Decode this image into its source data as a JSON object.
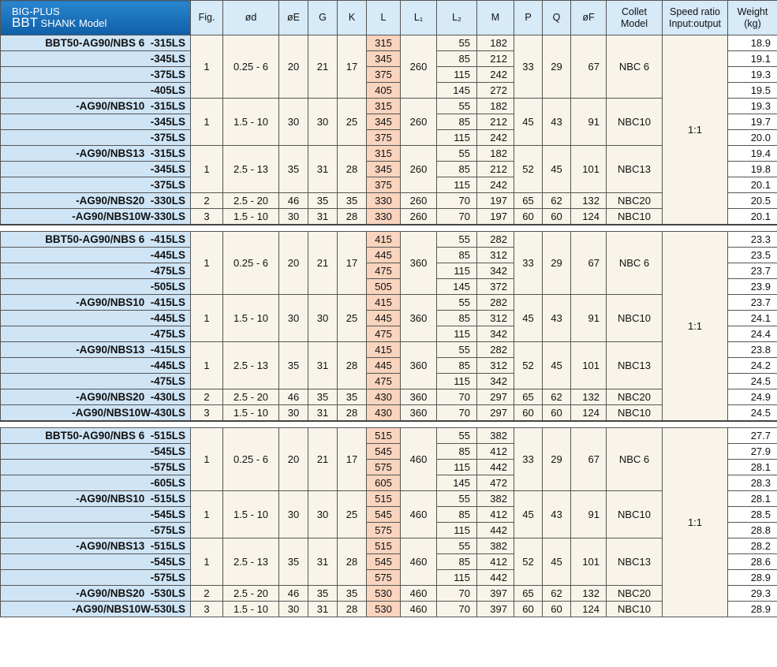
{
  "header": {
    "title": [
      "BIG-PLUS",
      "BBT",
      "SHANK Model"
    ],
    "columns": [
      [
        "Fig."
      ],
      [
        "ød"
      ],
      [
        "øE"
      ],
      [
        "G"
      ],
      [
        "K"
      ],
      [
        "L"
      ],
      [
        "L₁"
      ],
      [
        "L₂"
      ],
      [
        "M"
      ],
      [
        "P"
      ],
      [
        "Q"
      ],
      [
        "øF"
      ],
      [
        "Collet",
        "Model"
      ],
      [
        "Speed ratio",
        "Input:output"
      ],
      [
        "Weight",
        "(kg)"
      ]
    ]
  },
  "sections": [
    {
      "speed_ratio": "1:1",
      "groups": [
        {
          "fig": 1,
          "od": "0.25 - 6",
          "oE": 20,
          "G": 21,
          "K": 17,
          "L1": 260,
          "P": 33,
          "Q": 29,
          "oF": 67,
          "collet": "NBC 6",
          "rows": [
            {
              "model": "BBT50-AG90/NBS 6  -315LS",
              "L": 315,
              "L2": 55,
              "M": 182,
              "weight": "18.9"
            },
            {
              "model": "-345LS",
              "L": 345,
              "L2": 85,
              "M": 212,
              "weight": "19.1"
            },
            {
              "model": "-375LS",
              "L": 375,
              "L2": 115,
              "M": 242,
              "weight": "19.3"
            },
            {
              "model": "-405LS",
              "L": 405,
              "L2": 145,
              "M": 272,
              "weight": "19.5"
            }
          ]
        },
        {
          "fig": 1,
          "od": "1.5 - 10",
          "oE": 30,
          "G": 30,
          "K": 25,
          "L1": 260,
          "P": 45,
          "Q": 43,
          "oF": 91,
          "collet": "NBC10",
          "rows": [
            {
              "model": "-AG90/NBS10  -315LS",
              "L": 315,
              "L2": 55,
              "M": 182,
              "weight": "19.3"
            },
            {
              "model": "-345LS",
              "L": 345,
              "L2": 85,
              "M": 212,
              "weight": "19.7"
            },
            {
              "model": "-375LS",
              "L": 375,
              "L2": 115,
              "M": 242,
              "weight": "20.0"
            }
          ]
        },
        {
          "fig": 1,
          "od": "2.5 - 13",
          "oE": 35,
          "G": 31,
          "K": 28,
          "L1": 260,
          "P": 52,
          "Q": 45,
          "oF": 101,
          "collet": "NBC13",
          "rows": [
            {
              "model": "-AG90/NBS13  -315LS",
              "L": 315,
              "L2": 55,
              "M": 182,
              "weight": "19.4"
            },
            {
              "model": "-345LS",
              "L": 345,
              "L2": 85,
              "M": 212,
              "weight": "19.8"
            },
            {
              "model": "-375LS",
              "L": 375,
              "L2": 115,
              "M": 242,
              "weight": "20.1"
            }
          ]
        },
        {
          "fig": 2,
          "od": "2.5 - 20",
          "oE": 46,
          "G": 35,
          "K": 35,
          "L1": 260,
          "P": 65,
          "Q": 62,
          "oF": 132,
          "collet": "NBC20",
          "rows": [
            {
              "model": "-AG90/NBS20  -330LS",
              "L": 330,
              "L2": 70,
              "M": 197,
              "weight": "20.5"
            }
          ]
        },
        {
          "fig": 3,
          "od": "1.5 - 10",
          "oE": 30,
          "G": 31,
          "K": 28,
          "L1": 260,
          "P": 60,
          "Q": 60,
          "oF": 124,
          "collet": "NBC10",
          "rows": [
            {
              "model": "-AG90/NBS10W-330LS",
              "L": 330,
              "L2": 70,
              "M": 197,
              "weight": "20.1"
            }
          ]
        }
      ]
    },
    {
      "speed_ratio": "1:1",
      "groups": [
        {
          "fig": 1,
          "od": "0.25 - 6",
          "oE": 20,
          "G": 21,
          "K": 17,
          "L1": 360,
          "P": 33,
          "Q": 29,
          "oF": 67,
          "collet": "NBC 6",
          "rows": [
            {
              "model": "BBT50-AG90/NBS 6  -415LS",
              "L": 415,
              "L2": 55,
              "M": 282,
              "weight": "23.3"
            },
            {
              "model": "-445LS",
              "L": 445,
              "L2": 85,
              "M": 312,
              "weight": "23.5"
            },
            {
              "model": "-475LS",
              "L": 475,
              "L2": 115,
              "M": 342,
              "weight": "23.7"
            },
            {
              "model": "-505LS",
              "L": 505,
              "L2": 145,
              "M": 372,
              "weight": "23.9"
            }
          ]
        },
        {
          "fig": 1,
          "od": "1.5 - 10",
          "oE": 30,
          "G": 30,
          "K": 25,
          "L1": 360,
          "P": 45,
          "Q": 43,
          "oF": 91,
          "collet": "NBC10",
          "rows": [
            {
              "model": "-AG90/NBS10  -415LS",
              "L": 415,
              "L2": 55,
              "M": 282,
              "weight": "23.7"
            },
            {
              "model": "-445LS",
              "L": 445,
              "L2": 85,
              "M": 312,
              "weight": "24.1"
            },
            {
              "model": "-475LS",
              "L": 475,
              "L2": 115,
              "M": 342,
              "weight": "24.4"
            }
          ]
        },
        {
          "fig": 1,
          "od": "2.5 - 13",
          "oE": 35,
          "G": 31,
          "K": 28,
          "L1": 360,
          "P": 52,
          "Q": 45,
          "oF": 101,
          "collet": "NBC13",
          "rows": [
            {
              "model": "-AG90/NBS13  -415LS",
              "L": 415,
              "L2": 55,
              "M": 282,
              "weight": "23.8"
            },
            {
              "model": "-445LS",
              "L": 445,
              "L2": 85,
              "M": 312,
              "weight": "24.2"
            },
            {
              "model": "-475LS",
              "L": 475,
              "L2": 115,
              "M": 342,
              "weight": "24.5"
            }
          ]
        },
        {
          "fig": 2,
          "od": "2.5 - 20",
          "oE": 46,
          "G": 35,
          "K": 35,
          "L1": 360,
          "P": 65,
          "Q": 62,
          "oF": 132,
          "collet": "NBC20",
          "rows": [
            {
              "model": "-AG90/NBS20  -430LS",
              "L": 430,
              "L2": 70,
              "M": 297,
              "weight": "24.9"
            }
          ]
        },
        {
          "fig": 3,
          "od": "1.5 - 10",
          "oE": 30,
          "G": 31,
          "K": 28,
          "L1": 360,
          "P": 60,
          "Q": 60,
          "oF": 124,
          "collet": "NBC10",
          "rows": [
            {
              "model": "-AG90/NBS10W-430LS",
              "L": 430,
              "L2": 70,
              "M": 297,
              "weight": "24.5"
            }
          ]
        }
      ]
    },
    {
      "speed_ratio": "1:1",
      "groups": [
        {
          "fig": 1,
          "od": "0.25 - 6",
          "oE": 20,
          "G": 21,
          "K": 17,
          "L1": 460,
          "P": 33,
          "Q": 29,
          "oF": 67,
          "collet": "NBC 6",
          "rows": [
            {
              "model": "BBT50-AG90/NBS 6  -515LS",
              "L": 515,
              "L2": 55,
              "M": 382,
              "weight": "27.7"
            },
            {
              "model": "-545LS",
              "L": 545,
              "L2": 85,
              "M": 412,
              "weight": "27.9"
            },
            {
              "model": "-575LS",
              "L": 575,
              "L2": 115,
              "M": 442,
              "weight": "28.1"
            },
            {
              "model": "-605LS",
              "L": 605,
              "L2": 145,
              "M": 472,
              "weight": "28.3"
            }
          ]
        },
        {
          "fig": 1,
          "od": "1.5 - 10",
          "oE": 30,
          "G": 30,
          "K": 25,
          "L1": 460,
          "P": 45,
          "Q": 43,
          "oF": 91,
          "collet": "NBC10",
          "rows": [
            {
              "model": "-AG90/NBS10  -515LS",
              "L": 515,
              "L2": 55,
              "M": 382,
              "weight": "28.1"
            },
            {
              "model": "-545LS",
              "L": 545,
              "L2": 85,
              "M": 412,
              "weight": "28.5"
            },
            {
              "model": "-575LS",
              "L": 575,
              "L2": 115,
              "M": 442,
              "weight": "28.8"
            }
          ]
        },
        {
          "fig": 1,
          "od": "2.5 - 13",
          "oE": 35,
          "G": 31,
          "K": 28,
          "L1": 460,
          "P": 52,
          "Q": 45,
          "oF": 101,
          "collet": "NBC13",
          "rows": [
            {
              "model": "-AG90/NBS13  -515LS",
              "L": 515,
              "L2": 55,
              "M": 382,
              "weight": "28.2"
            },
            {
              "model": "-545LS",
              "L": 545,
              "L2": 85,
              "M": 412,
              "weight": "28.6"
            },
            {
              "model": "-575LS",
              "L": 575,
              "L2": 115,
              "M": 442,
              "weight": "28.9"
            }
          ]
        },
        {
          "fig": 2,
          "od": "2.5 - 20",
          "oE": 46,
          "G": 35,
          "K": 35,
          "L1": 460,
          "P": 65,
          "Q": 62,
          "oF": 132,
          "collet": "NBC20",
          "rows": [
            {
              "model": "-AG90/NBS20  -530LS",
              "L": 530,
              "L2": 70,
              "M": 397,
              "weight": "29.3"
            }
          ]
        },
        {
          "fig": 3,
          "od": "1.5 - 10",
          "oE": 30,
          "G": 31,
          "K": 28,
          "L1": 460,
          "P": 60,
          "Q": 60,
          "oF": 124,
          "collet": "NBC10",
          "rows": [
            {
              "model": "-AG90/NBS10W-530LS",
              "L": 530,
              "L2": 70,
              "M": 397,
              "weight": "28.9"
            }
          ]
        }
      ]
    }
  ]
}
